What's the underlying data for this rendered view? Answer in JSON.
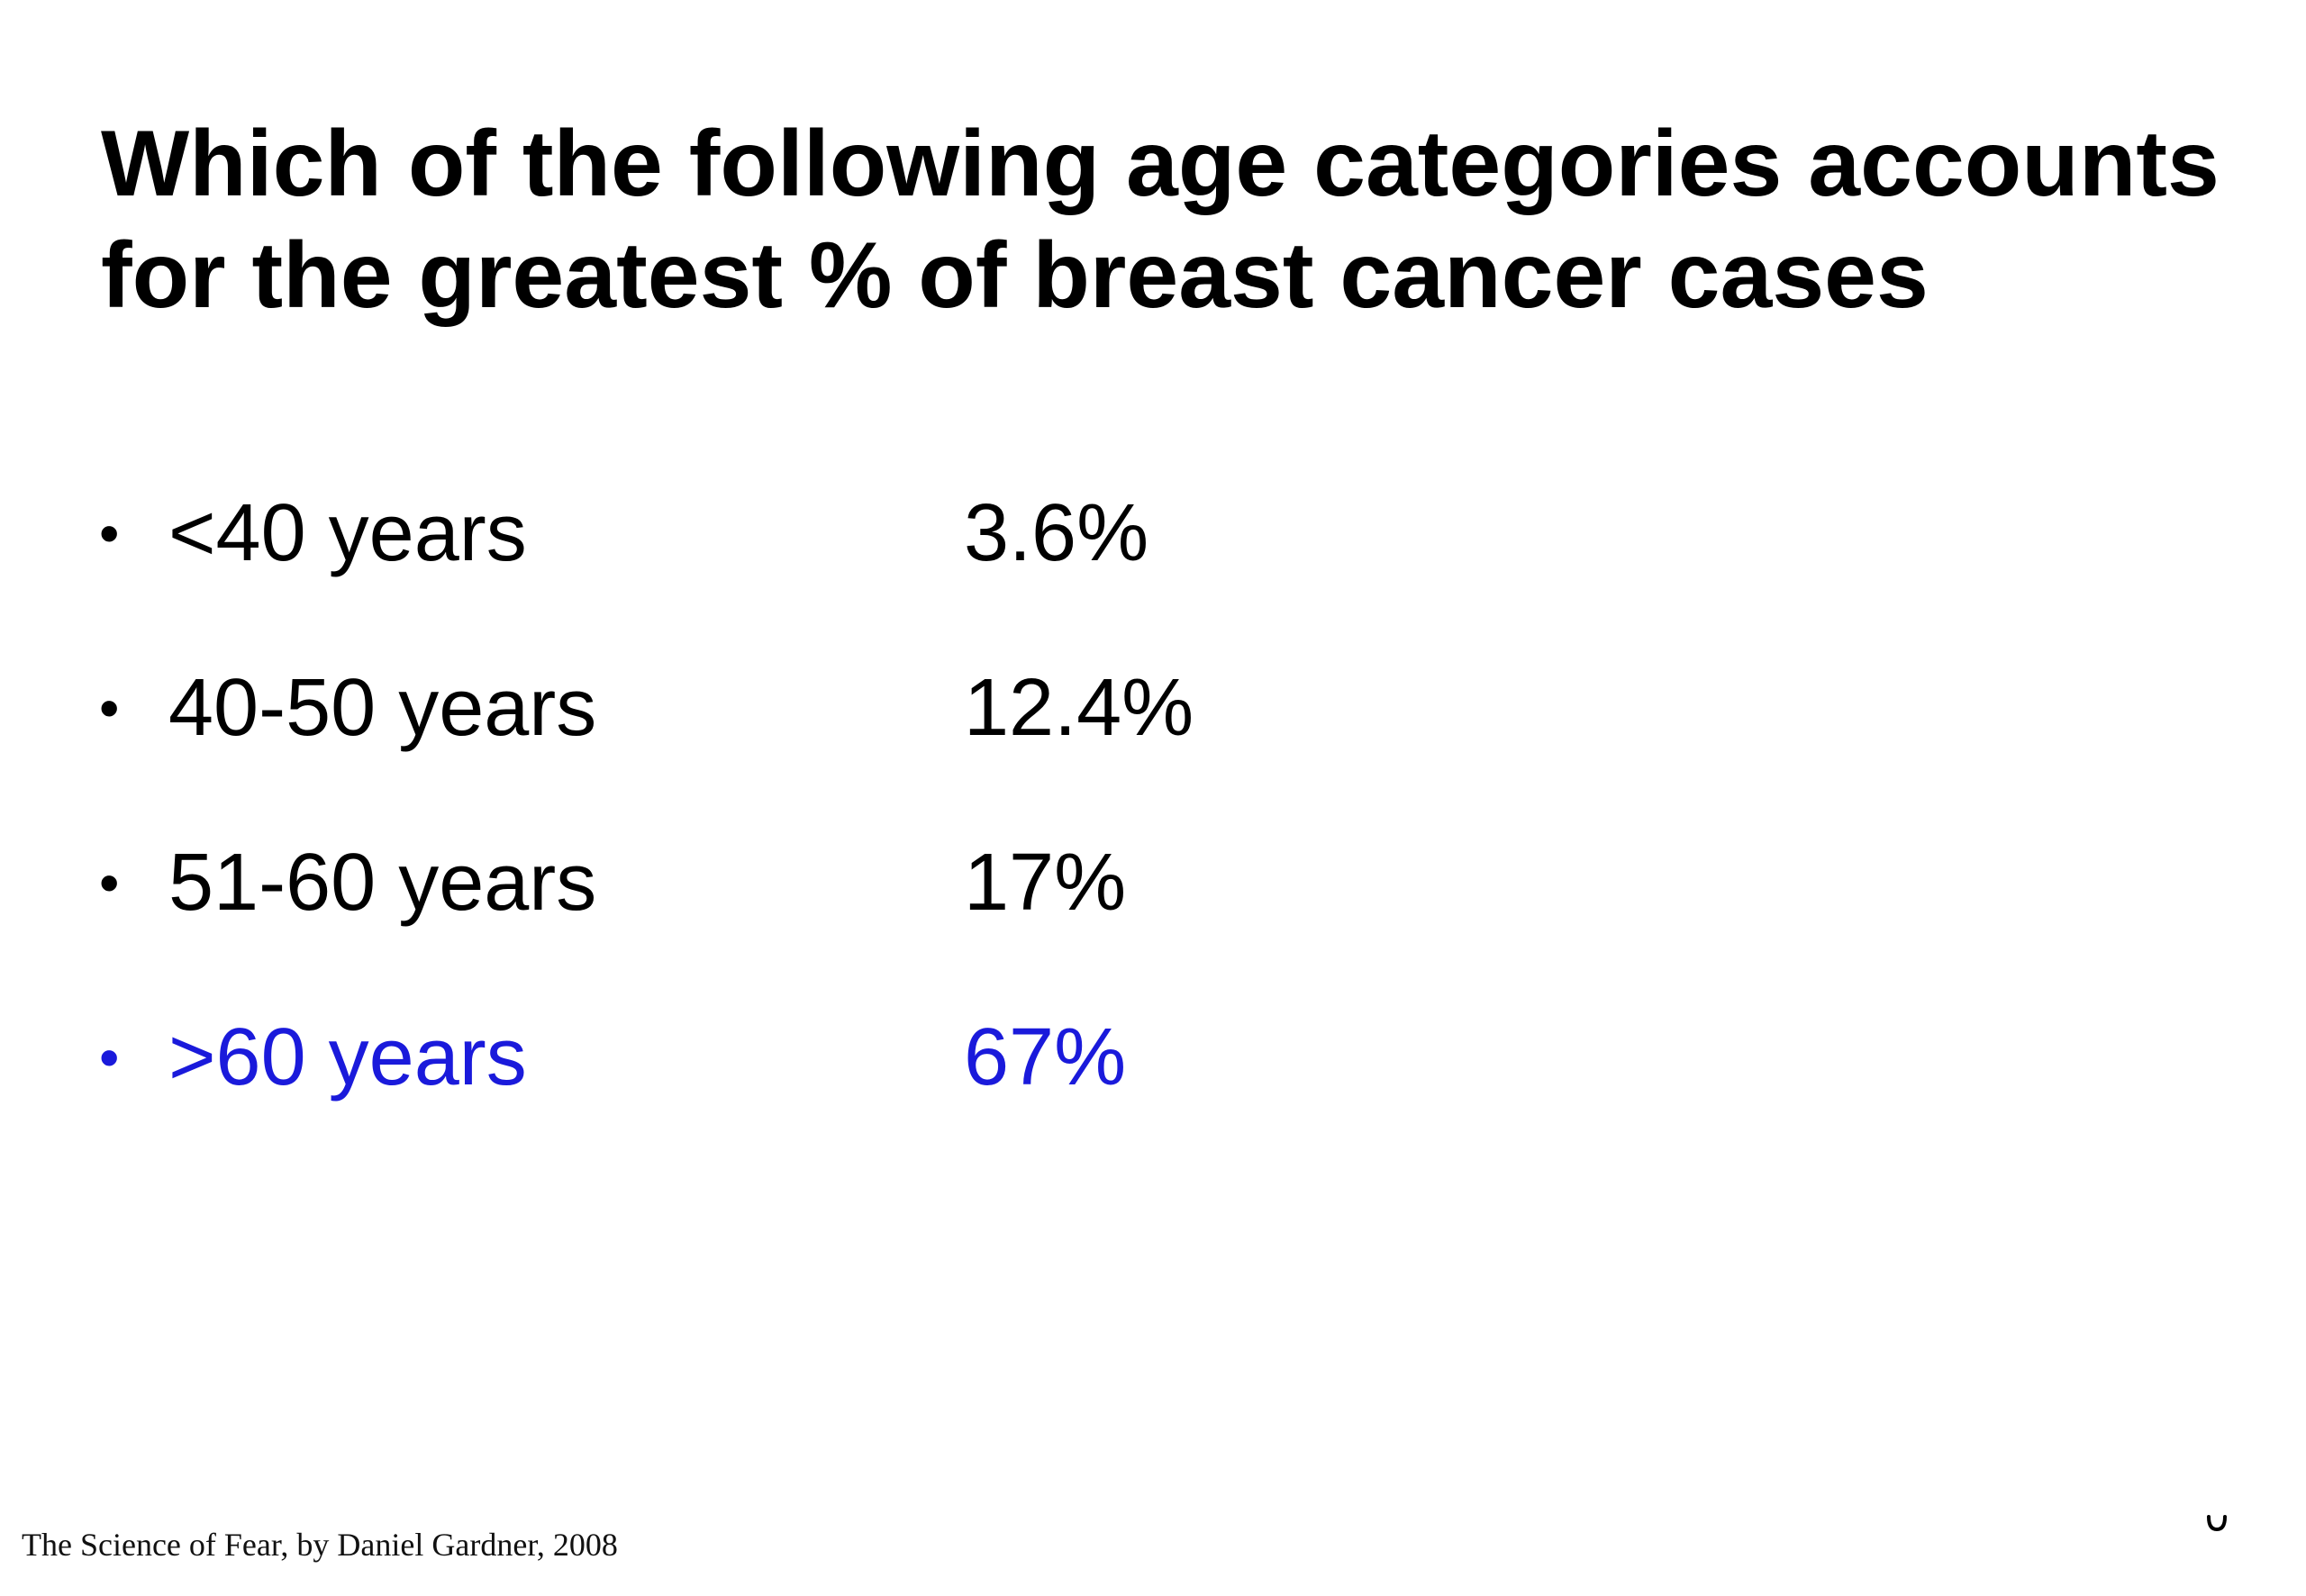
{
  "slide": {
    "title_lines": [
      "Which of the following age categories accounts",
      "for the greatest % of breast cancer cases"
    ],
    "bullet_glyph": "•",
    "items": [
      {
        "label": "<40 years",
        "value": "3.6%"
      },
      {
        "label": "40-50 years",
        "value": "12.4%"
      },
      {
        "label": "51-60 years",
        "value": "17%"
      },
      {
        "label": ">60 years",
        "value": "67%"
      }
    ],
    "highlighted_item_index": 3,
    "citation": "The Science of Fear, by Daniel Gardner, 2008"
  },
  "colors": {
    "text": "#000000",
    "highlight": "#1a1adb",
    "background": "#ffffff"
  }
}
